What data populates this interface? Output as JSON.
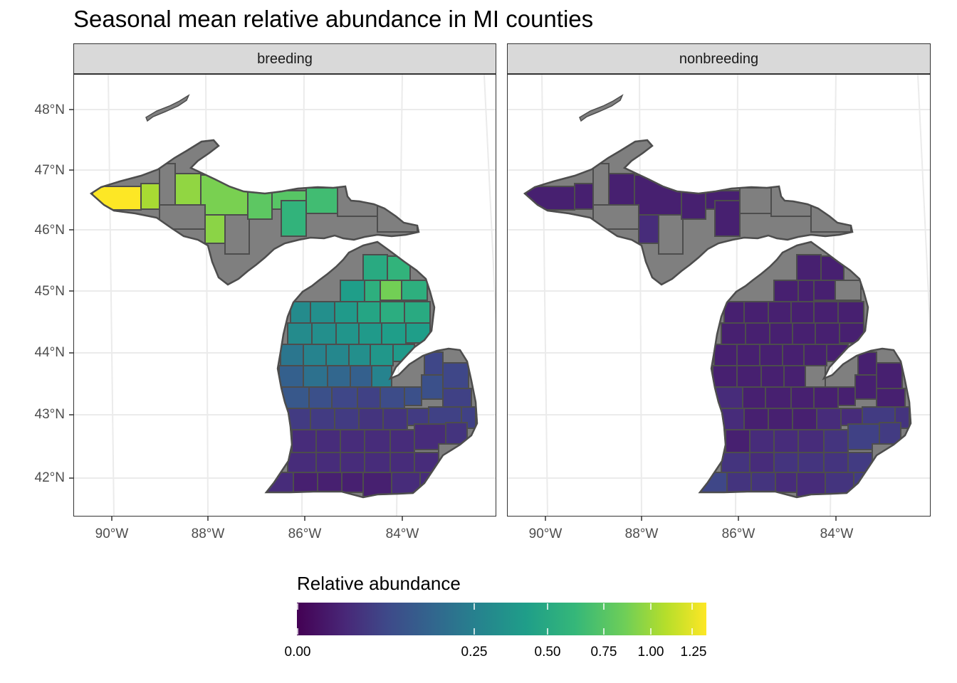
{
  "title": "Seasonal mean relative abundance in MI counties",
  "panels": [
    {
      "label": "breeding"
    },
    {
      "label": "nonbreeding"
    }
  ],
  "y_axis_labels": [
    "48°N",
    "47°N",
    "46°N",
    "45°N",
    "44°N",
    "43°N",
    "42°N"
  ],
  "x_axis_labels": [
    "90°W",
    "88°W",
    "86°W",
    "84°W"
  ],
  "legend": {
    "title": "Relative abundance",
    "tick_labels": [
      "0.00",
      "0.25",
      "0.50",
      "0.75",
      "1.00",
      "1.25"
    ]
  },
  "colors": {
    "na_county": "#7f7f7f",
    "county_border": "#4d4d4d",
    "viridis_low": "#440154",
    "viridis_high": "#fde725"
  },
  "chart_data": {
    "type": "map",
    "region": "Michigan counties",
    "facets": [
      "breeding",
      "nonbreeding"
    ],
    "value_range": [
      0,
      1.3
    ],
    "scale": "sqrt",
    "series": [
      {
        "name": "breeding",
        "summary": "Highest in western Upper Peninsula (~1.3), moderate (0.4–0.8) across central UP and northern Lower Peninsula, low (<0.1) in southern Lower Peninsula; several counties missing (grey)"
      },
      {
        "name": "nonbreeding",
        "summary": "Near 0 across nearly all counties; slightly higher (~0.02–0.05) in southwestern and southeastern Lower Peninsula; several counties missing (grey)"
      }
    ]
  }
}
